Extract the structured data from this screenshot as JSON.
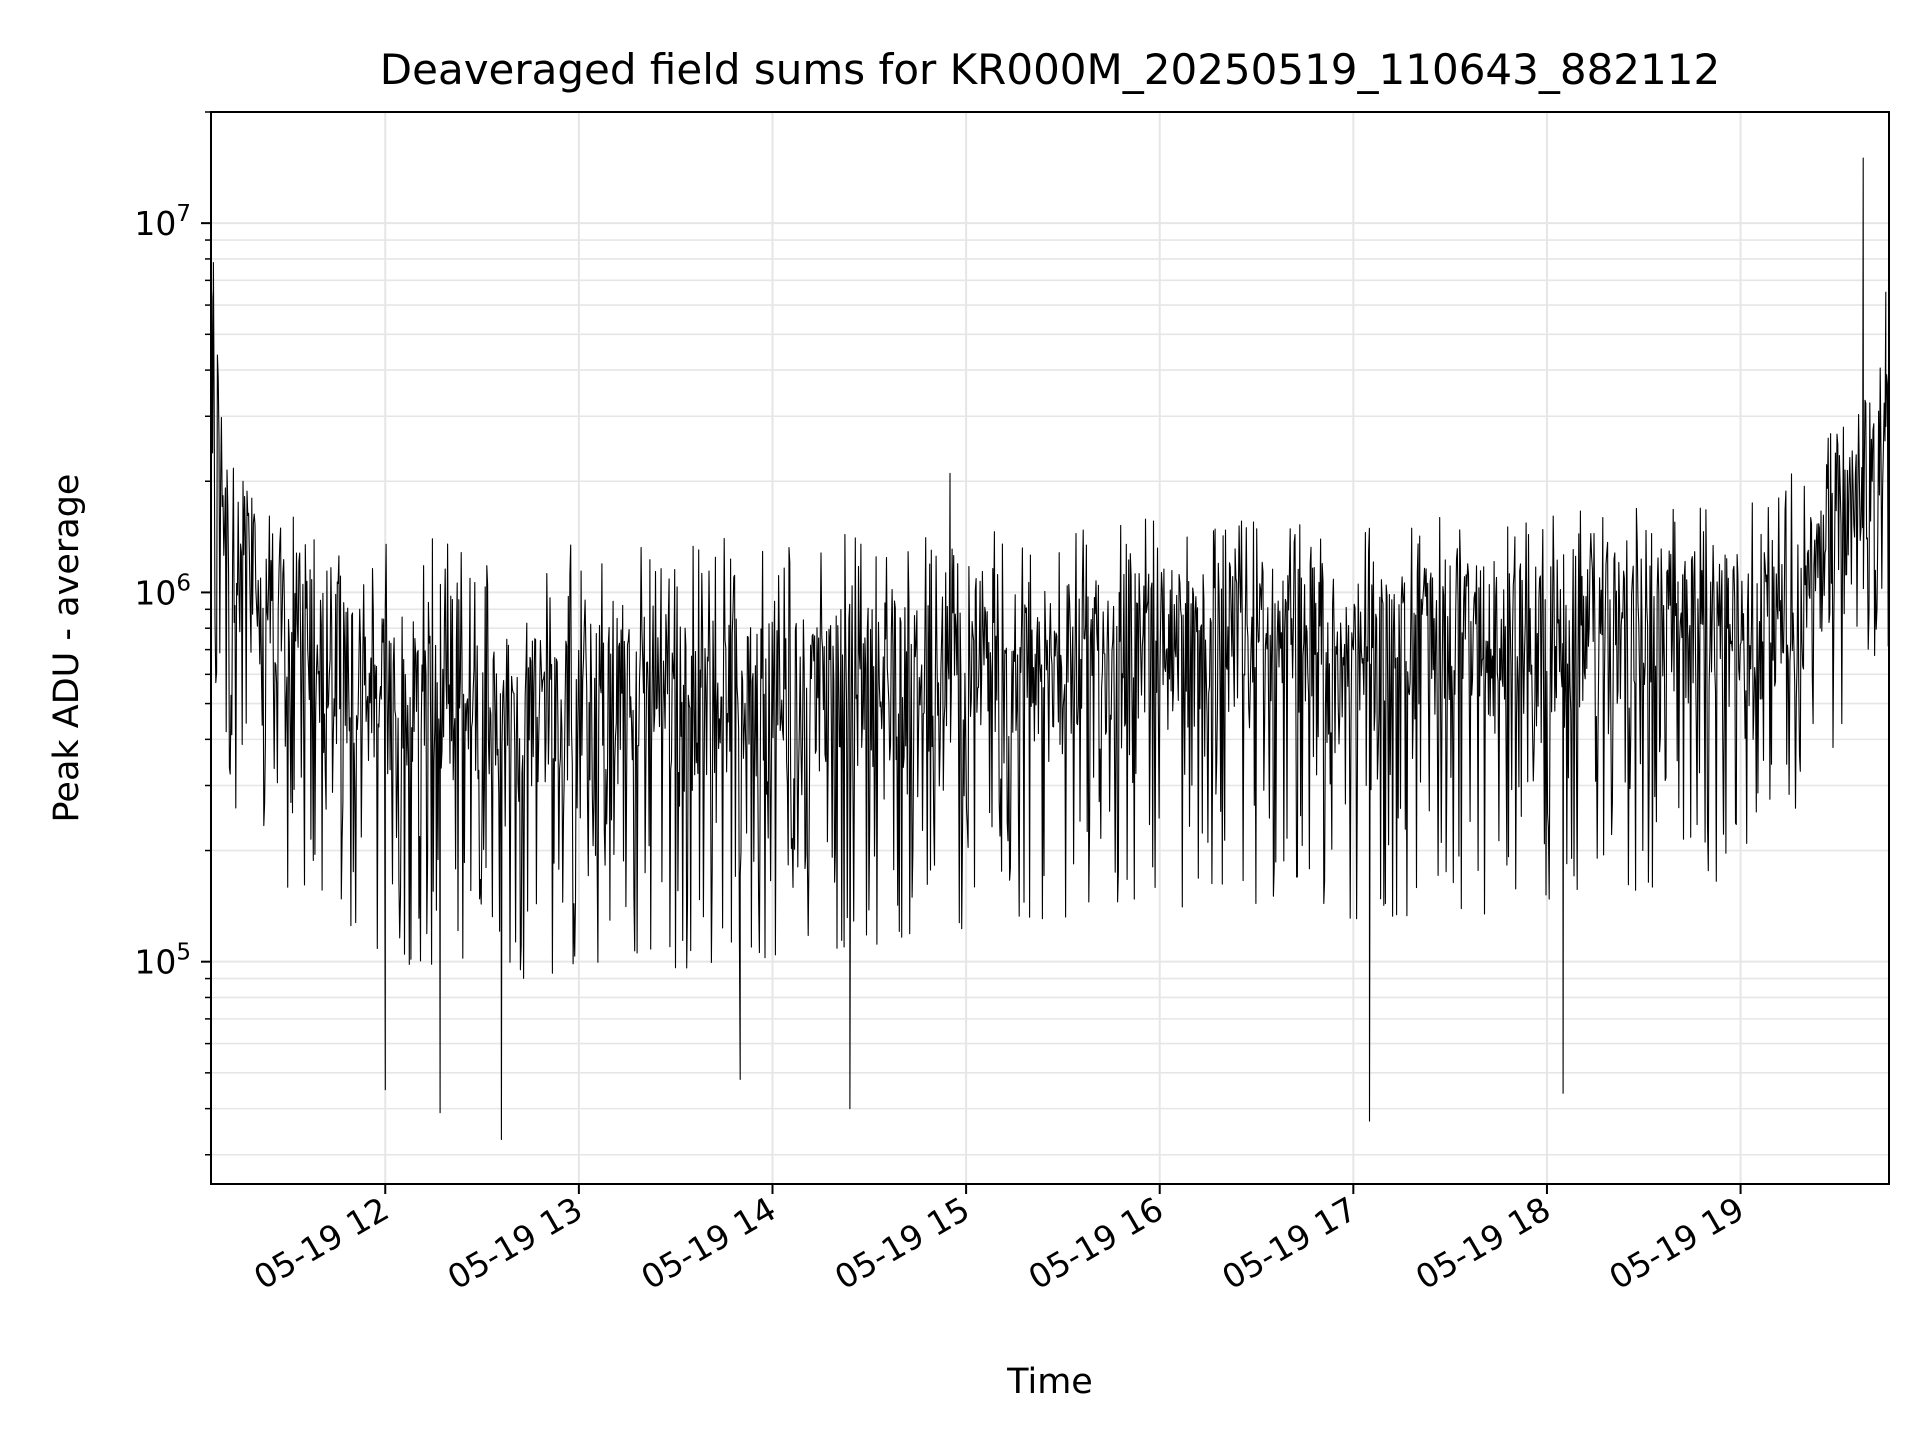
{
  "chart_data": {
    "type": "line",
    "title": "Deaveraged field sums for KR000M_20250519_110643_882112",
    "xlabel": "Time",
    "ylabel": "Peak ADU - average",
    "yscale": "log",
    "ylim": [
      25000,
      20000000
    ],
    "xlim": [
      "2025-05-19 11:06",
      "2025-05-19 19:46"
    ],
    "x_ticks": [
      "05-19 12",
      "05-19 13",
      "05-19 14",
      "05-19 15",
      "05-19 16",
      "05-19 17",
      "05-19 18",
      "05-19 19"
    ],
    "y_ticks": [
      "10^5",
      "10^6",
      "10^7"
    ],
    "grid": true,
    "line_color": "#000000",
    "series": [
      {
        "x": [
          "2025-05-19 11:06",
          "2025-05-19 11:10",
          "2025-05-19 11:20",
          "2025-05-19 11:30",
          "2025-05-19 11:45",
          "2025-05-19 12:00",
          "2025-05-19 12:30",
          "2025-05-19 13:00",
          "2025-05-19 13:30",
          "2025-05-19 14:00",
          "2025-05-19 14:30",
          "2025-05-19 15:00",
          "2025-05-19 15:30",
          "2025-05-19 16:00",
          "2025-05-19 16:30",
          "2025-05-19 17:00",
          "2025-05-19 17:30",
          "2025-05-19 18:00",
          "2025-05-19 18:30",
          "2025-05-19 19:00",
          "2025-05-19 19:20",
          "2025-05-19 19:35",
          "2025-05-19 19:46"
        ],
        "y": [
          7000000,
          1500000,
          1100000,
          850000,
          650000,
          520000,
          480000,
          500000,
          520000,
          540000,
          560000,
          600000,
          650000,
          700000,
          720000,
          720000,
          740000,
          760000,
          780000,
          800000,
          1000000,
          2000000,
          2200000
        ],
        "band_low": [
          400000,
          300000,
          200000,
          150000,
          120000,
          100000,
          90000,
          90000,
          95000,
          100000,
          110000,
          120000,
          130000,
          140000,
          140000,
          130000,
          130000,
          140000,
          150000,
          170000,
          250000,
          500000,
          600000
        ],
        "band_high": [
          7000000,
          2600000,
          2200000,
          1700000,
          1500000,
          1400000,
          1400000,
          1400000,
          1400000,
          1450000,
          1450000,
          1500000,
          1550000,
          1600000,
          1600000,
          1600000,
          1600000,
          1650000,
          1700000,
          1800000,
          2300000,
          3500000,
          4500000
        ],
        "extremes": [
          {
            "x": "2025-05-19 11:06",
            "y": 7000000
          },
          {
            "x": "2025-05-19 12:00",
            "y": 45000
          },
          {
            "x": "2025-05-19 12:17",
            "y": 39000
          },
          {
            "x": "2025-05-19 12:36",
            "y": 33000
          },
          {
            "x": "2025-05-19 13:50",
            "y": 48000
          },
          {
            "x": "2025-05-19 14:24",
            "y": 40000
          },
          {
            "x": "2025-05-19 14:55",
            "y": 2100000
          },
          {
            "x": "2025-05-19 17:05",
            "y": 37000
          },
          {
            "x": "2025-05-19 18:05",
            "y": 44000
          },
          {
            "x": "2025-05-19 19:38",
            "y": 15000000
          },
          {
            "x": "2025-05-19 19:45",
            "y": 6500000
          }
        ]
      }
    ]
  }
}
